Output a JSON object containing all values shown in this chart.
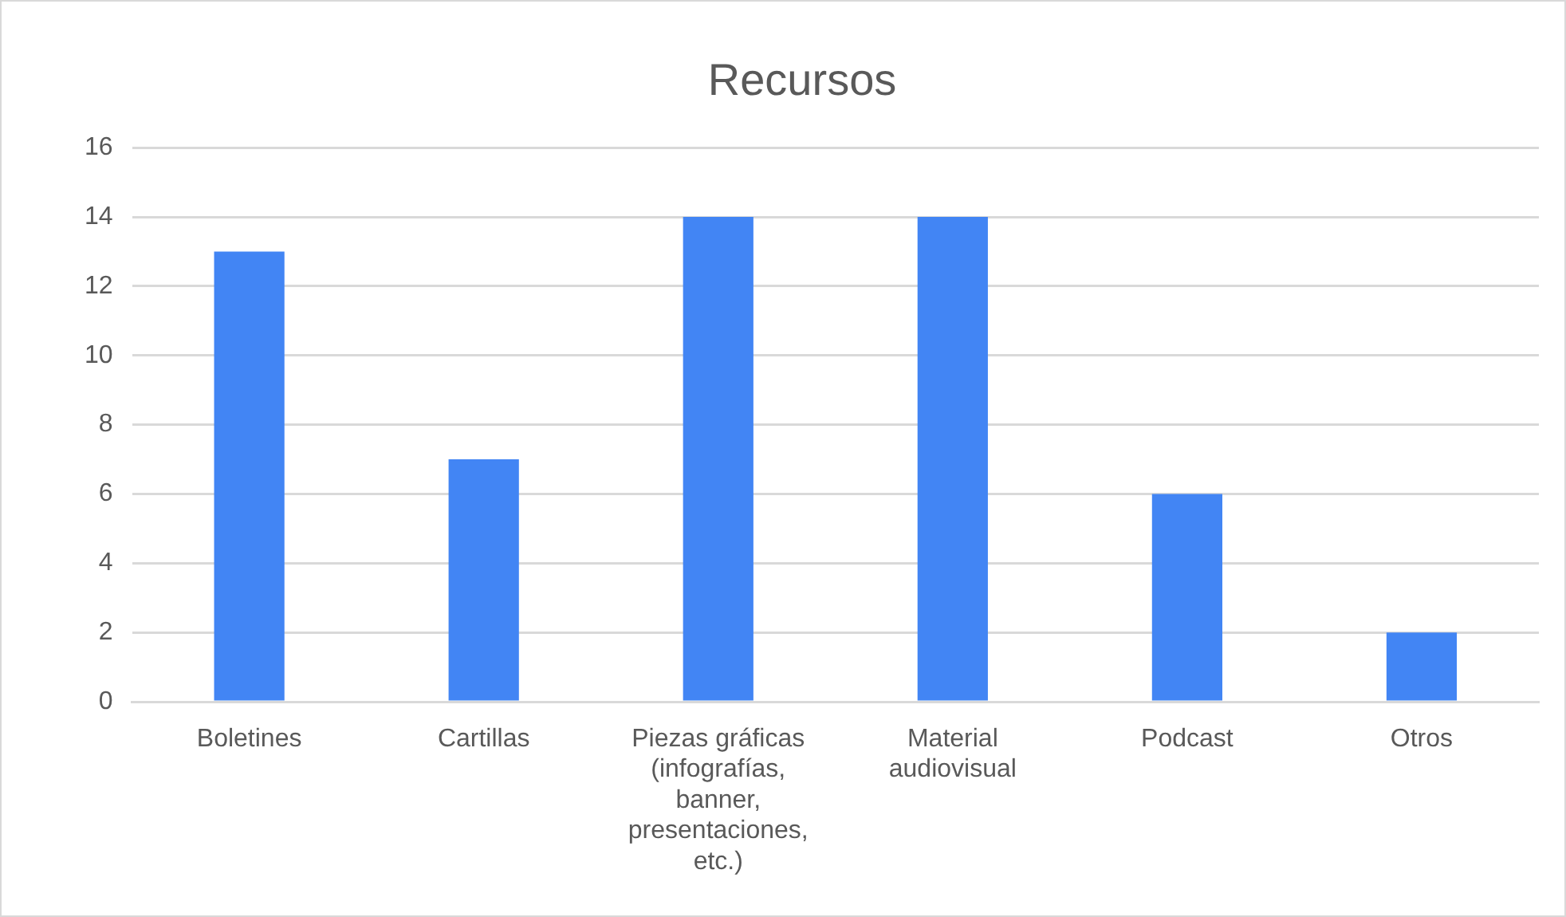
{
  "chart_data": {
    "type": "bar",
    "title": "Recursos",
    "categories": [
      "Boletines",
      "Cartillas",
      "Piezas gráficas (infografías, banner, presentaciones, etc.)",
      "Material audiovisual",
      "Podcast",
      "Otros"
    ],
    "values": [
      13,
      7,
      14,
      14,
      6,
      2
    ],
    "color": "#4285f4",
    "ylim": [
      0,
      16
    ],
    "yticks": [
      0,
      2,
      4,
      6,
      8,
      10,
      12,
      14,
      16
    ],
    "grid": "y",
    "legend": false
  }
}
